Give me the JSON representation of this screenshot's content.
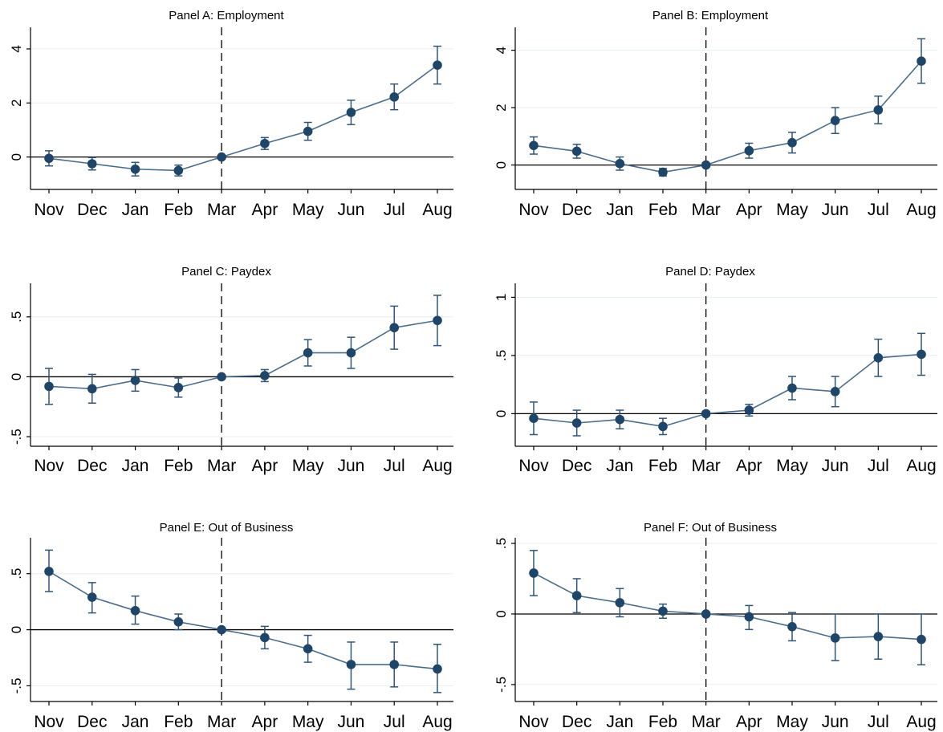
{
  "figure": {
    "colors": {
      "series": "#4a6d8c",
      "marker": "#1f4669",
      "ci": "#2f5677",
      "grid": "#e8eef2",
      "axis": "#000000",
      "background": "#ffffff"
    }
  },
  "chart_data": [
    {
      "type": "line",
      "title": "Panel A: Employment",
      "categories": [
        "Nov",
        "Dec",
        "Jan",
        "Feb",
        "Mar",
        "Apr",
        "May",
        "Jun",
        "Jul",
        "Aug"
      ],
      "ylim": [
        -1.2,
        4.8
      ],
      "yticks": [
        0,
        2,
        4
      ],
      "ytick_labels": [
        "0",
        "2",
        "4"
      ],
      "event_line_at": "Mar",
      "grid": true,
      "series": [
        {
          "values": [
            -0.05,
            -0.25,
            -0.45,
            -0.5,
            0.0,
            0.5,
            0.95,
            1.65,
            2.22,
            3.4
          ],
          "ci_low": [
            -0.33,
            -0.48,
            -0.7,
            -0.7,
            0.0,
            0.28,
            0.62,
            1.2,
            1.75,
            2.7
          ],
          "ci_high": [
            0.23,
            -0.02,
            -0.2,
            -0.3,
            0.0,
            0.72,
            1.28,
            2.1,
            2.7,
            4.1
          ]
        }
      ]
    },
    {
      "type": "line",
      "title": "Panel B: Employment",
      "categories": [
        "Nov",
        "Dec",
        "Jan",
        "Feb",
        "Mar",
        "Apr",
        "May",
        "Jun",
        "Jul",
        "Aug"
      ],
      "ylim": [
        -0.85,
        4.8
      ],
      "yticks": [
        0,
        2,
        4
      ],
      "ytick_labels": [
        "0",
        "2",
        "4"
      ],
      "event_line_at": "Mar",
      "grid": true,
      "series": [
        {
          "values": [
            0.68,
            0.48,
            0.05,
            -0.25,
            0.0,
            0.5,
            0.78,
            1.55,
            1.92,
            3.62
          ],
          "ci_low": [
            0.38,
            0.24,
            -0.18,
            -0.38,
            0.0,
            0.24,
            0.42,
            1.1,
            1.44,
            2.85
          ],
          "ci_high": [
            0.98,
            0.72,
            0.28,
            -0.12,
            0.0,
            0.76,
            1.14,
            2.0,
            2.4,
            4.4
          ]
        }
      ]
    },
    {
      "type": "line",
      "title": "Panel C: Paydex",
      "categories": [
        "Nov",
        "Dec",
        "Jan",
        "Feb",
        "Mar",
        "Apr",
        "May",
        "Jun",
        "Jul",
        "Aug"
      ],
      "ylim": [
        -0.58,
        0.78
      ],
      "yticks": [
        -0.5,
        0,
        0.5
      ],
      "ytick_labels": [
        "-.5",
        "0",
        ".5"
      ],
      "event_line_at": "Mar",
      "grid": true,
      "series": [
        {
          "values": [
            -0.08,
            -0.1,
            -0.03,
            -0.09,
            0.0,
            0.01,
            0.2,
            0.2,
            0.41,
            0.47
          ],
          "ci_low": [
            -0.23,
            -0.22,
            -0.12,
            -0.17,
            0.0,
            -0.04,
            0.09,
            0.07,
            0.23,
            0.26
          ],
          "ci_high": [
            0.07,
            0.02,
            0.06,
            -0.01,
            0.0,
            0.06,
            0.31,
            0.33,
            0.59,
            0.68
          ]
        }
      ]
    },
    {
      "type": "line",
      "title": "Panel D: Paydex",
      "categories": [
        "Nov",
        "Dec",
        "Jan",
        "Feb",
        "Mar",
        "Apr",
        "May",
        "Jun",
        "Jul",
        "Aug"
      ],
      "ylim": [
        -0.28,
        1.12
      ],
      "yticks": [
        0,
        0.5,
        1
      ],
      "ytick_labels": [
        "0",
        ".5",
        "1"
      ],
      "event_line_at": "Mar",
      "grid": true,
      "series": [
        {
          "values": [
            -0.04,
            -0.08,
            -0.05,
            -0.11,
            0.0,
            0.03,
            0.22,
            0.19,
            0.48,
            0.51
          ],
          "ci_low": [
            -0.18,
            -0.19,
            -0.13,
            -0.18,
            0.0,
            -0.02,
            0.12,
            0.06,
            0.32,
            0.33
          ],
          "ci_high": [
            0.1,
            0.03,
            0.03,
            -0.04,
            0.0,
            0.08,
            0.32,
            0.32,
            0.64,
            0.69
          ]
        }
      ]
    },
    {
      "type": "line",
      "title": "Panel E: Out of Business",
      "categories": [
        "Nov",
        "Dec",
        "Jan",
        "Feb",
        "Mar",
        "Apr",
        "May",
        "Jun",
        "Jul",
        "Aug"
      ],
      "ylim": [
        -0.64,
        0.82
      ],
      "yticks": [
        -0.5,
        0,
        0.5
      ],
      "ytick_labels": [
        "-.5",
        "0",
        ".5"
      ],
      "event_line_at": "Mar",
      "grid": true,
      "series": [
        {
          "values": [
            0.52,
            0.29,
            0.17,
            0.07,
            0.0,
            -0.07,
            -0.17,
            -0.31,
            -0.31,
            -0.35
          ],
          "ci_low": [
            0.34,
            0.15,
            0.05,
            0.0,
            0.0,
            -0.17,
            -0.29,
            -0.53,
            -0.51,
            -0.56
          ],
          "ci_high": [
            0.71,
            0.42,
            0.3,
            0.14,
            0.0,
            0.03,
            -0.05,
            -0.11,
            -0.11,
            -0.13
          ]
        }
      ]
    },
    {
      "type": "line",
      "title": "Panel F: Out of Business",
      "categories": [
        "Nov",
        "Dec",
        "Jan",
        "Feb",
        "Mar",
        "Apr",
        "May",
        "Jun",
        "Jul",
        "Aug"
      ],
      "ylim": [
        -0.62,
        0.54
      ],
      "yticks": [
        -0.5,
        0,
        0.5
      ],
      "ytick_labels": [
        "-.5",
        "0",
        ".5"
      ],
      "event_line_at": "Mar",
      "grid": true,
      "series": [
        {
          "values": [
            0.29,
            0.13,
            0.08,
            0.02,
            0.0,
            -0.02,
            -0.09,
            -0.17,
            -0.16,
            -0.18
          ],
          "ci_low": [
            0.13,
            0.01,
            -0.02,
            -0.03,
            0.0,
            -0.11,
            -0.19,
            -0.33,
            -0.32,
            -0.36
          ],
          "ci_high": [
            0.45,
            0.25,
            0.18,
            0.07,
            0.0,
            0.06,
            0.01,
            0.0,
            0.0,
            0.0
          ]
        }
      ]
    }
  ]
}
